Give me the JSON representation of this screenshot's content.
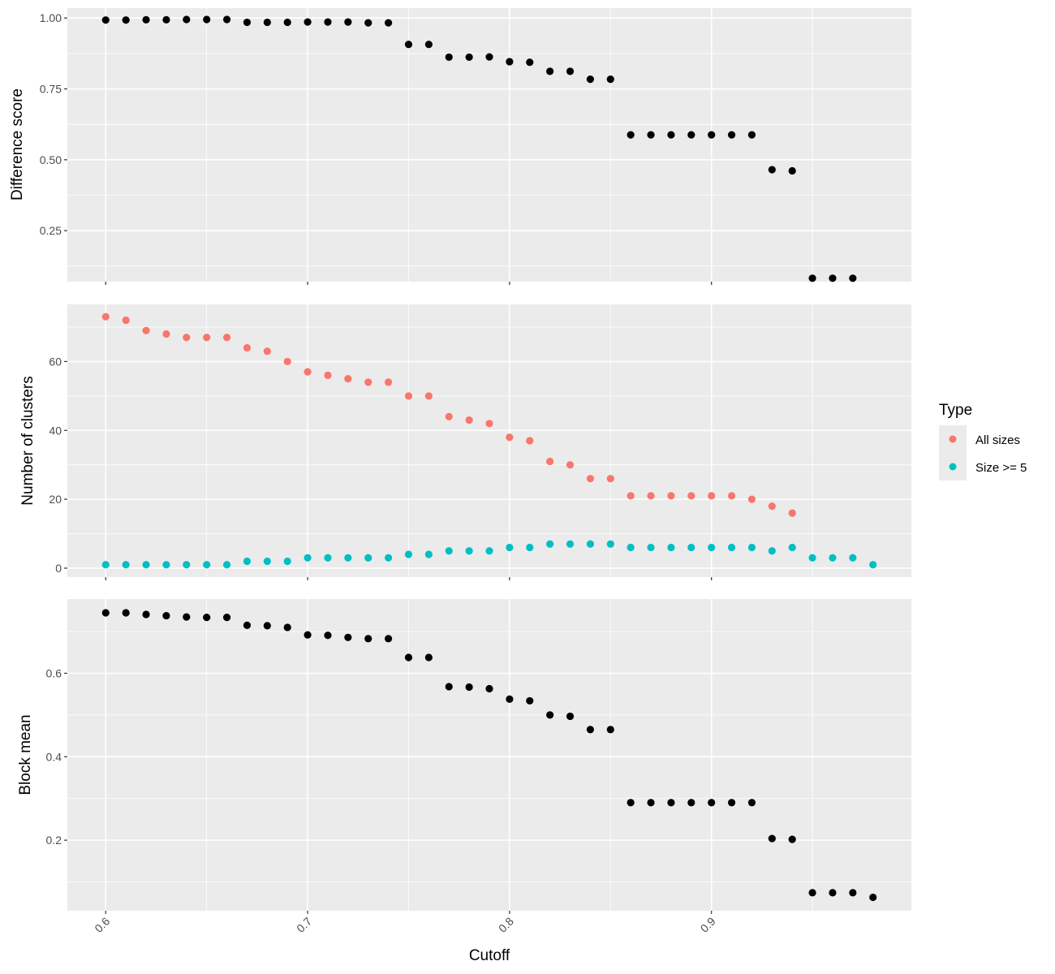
{
  "chart_data": [
    {
      "type": "scatter",
      "panel": "top",
      "ylabel": "Difference score",
      "xlabel": "",
      "xlim": [
        0.581,
        0.999
      ],
      "ylim": [
        0.07,
        1.035
      ],
      "y_ticks": [
        0.25,
        0.5,
        0.75,
        1.0
      ],
      "y_tick_labels": [
        "0.25",
        "0.50",
        "0.75",
        "1.00"
      ],
      "x_ticks": [
        0.6,
        0.7,
        0.8,
        0.9
      ],
      "grid": true,
      "color": "#000000",
      "x": [
        0.6,
        0.61,
        0.62,
        0.63,
        0.64,
        0.65,
        0.66,
        0.67,
        0.68,
        0.69,
        0.7,
        0.71,
        0.72,
        0.73,
        0.74,
        0.75,
        0.76,
        0.77,
        0.78,
        0.79,
        0.8,
        0.81,
        0.82,
        0.83,
        0.84,
        0.85,
        0.86,
        0.87,
        0.88,
        0.89,
        0.9,
        0.91,
        0.92,
        0.93,
        0.94,
        0.95,
        0.96,
        0.97
      ],
      "y": [
        0.993,
        0.993,
        0.994,
        0.994,
        0.995,
        0.995,
        0.995,
        0.985,
        0.985,
        0.985,
        0.986,
        0.986,
        0.986,
        0.983,
        0.983,
        0.907,
        0.907,
        0.862,
        0.862,
        0.863,
        0.846,
        0.844,
        0.812,
        0.812,
        0.784,
        0.784,
        0.588,
        0.588,
        0.588,
        0.588,
        0.588,
        0.588,
        0.588,
        0.465,
        0.461,
        0.082,
        0.082,
        0.082
      ]
    },
    {
      "type": "scatter",
      "panel": "middle",
      "ylabel": "Number of clusters",
      "xlabel": "",
      "xlim": [
        0.581,
        0.999
      ],
      "ylim": [
        -2.6,
        76.6
      ],
      "y_ticks": [
        0,
        20,
        40,
        60
      ],
      "y_tick_labels": [
        "0",
        "20",
        "40",
        "60"
      ],
      "x_ticks": [
        0.6,
        0.7,
        0.8,
        0.9
      ],
      "grid": true,
      "legend": {
        "title": "Type",
        "position": "right"
      },
      "series": [
        {
          "name": "All sizes",
          "color": "#F8766D",
          "x": [
            0.6,
            0.61,
            0.62,
            0.63,
            0.64,
            0.65,
            0.66,
            0.67,
            0.68,
            0.69,
            0.7,
            0.71,
            0.72,
            0.73,
            0.74,
            0.75,
            0.76,
            0.77,
            0.78,
            0.79,
            0.8,
            0.81,
            0.82,
            0.83,
            0.84,
            0.85,
            0.86,
            0.87,
            0.88,
            0.89,
            0.9,
            0.91,
            0.92,
            0.93,
            0.94
          ],
          "y": [
            73,
            72,
            69,
            68,
            67,
            67,
            67,
            64,
            63,
            60,
            57,
            56,
            55,
            54,
            54,
            50,
            50,
            44,
            43,
            42,
            38,
            37,
            31,
            30,
            26,
            26,
            21,
            21,
            21,
            21,
            21,
            21,
            20,
            18,
            16
          ]
        },
        {
          "name": "Size >= 5",
          "color": "#00BFC4",
          "x": [
            0.6,
            0.61,
            0.62,
            0.63,
            0.64,
            0.65,
            0.66,
            0.67,
            0.68,
            0.69,
            0.7,
            0.71,
            0.72,
            0.73,
            0.74,
            0.75,
            0.76,
            0.77,
            0.78,
            0.79,
            0.8,
            0.81,
            0.82,
            0.83,
            0.84,
            0.85,
            0.86,
            0.87,
            0.88,
            0.89,
            0.9,
            0.91,
            0.92,
            0.93,
            0.94,
            0.95,
            0.96,
            0.97,
            0.98
          ],
          "y": [
            1,
            1,
            1,
            1,
            1,
            1,
            1,
            2,
            2,
            2,
            3,
            3,
            3,
            3,
            3,
            4,
            4,
            5,
            5,
            5,
            6,
            6,
            7,
            7,
            7,
            7,
            6,
            6,
            6,
            6,
            6,
            6,
            6,
            5,
            6,
            3,
            3,
            3,
            1
          ]
        }
      ]
    },
    {
      "type": "scatter",
      "panel": "bottom",
      "ylabel": "Block mean",
      "xlabel": "Cutoff",
      "xlim": [
        0.581,
        0.999
      ],
      "ylim": [
        0.031,
        0.778
      ],
      "y_ticks": [
        0.2,
        0.4,
        0.6
      ],
      "y_tick_labels": [
        "0.2",
        "0.4",
        "0.6"
      ],
      "x_ticks": [
        0.6,
        0.7,
        0.8,
        0.9
      ],
      "x_tick_labels": [
        "0.6",
        "0.7",
        "0.8",
        "0.9"
      ],
      "grid": true,
      "color": "#000000",
      "x": [
        0.6,
        0.61,
        0.62,
        0.63,
        0.64,
        0.65,
        0.66,
        0.67,
        0.68,
        0.69,
        0.7,
        0.71,
        0.72,
        0.73,
        0.74,
        0.75,
        0.76,
        0.77,
        0.78,
        0.79,
        0.8,
        0.81,
        0.82,
        0.83,
        0.84,
        0.85,
        0.86,
        0.87,
        0.88,
        0.89,
        0.9,
        0.91,
        0.92,
        0.93,
        0.94,
        0.95,
        0.96,
        0.97,
        0.98
      ],
      "y": [
        0.745,
        0.745,
        0.741,
        0.738,
        0.735,
        0.734,
        0.734,
        0.715,
        0.714,
        0.71,
        0.692,
        0.691,
        0.686,
        0.683,
        0.683,
        0.638,
        0.638,
        0.568,
        0.567,
        0.563,
        0.538,
        0.534,
        0.5,
        0.497,
        0.465,
        0.465,
        0.29,
        0.29,
        0.29,
        0.29,
        0.29,
        0.29,
        0.29,
        0.204,
        0.202,
        0.074,
        0.074,
        0.074,
        0.063
      ]
    }
  ]
}
